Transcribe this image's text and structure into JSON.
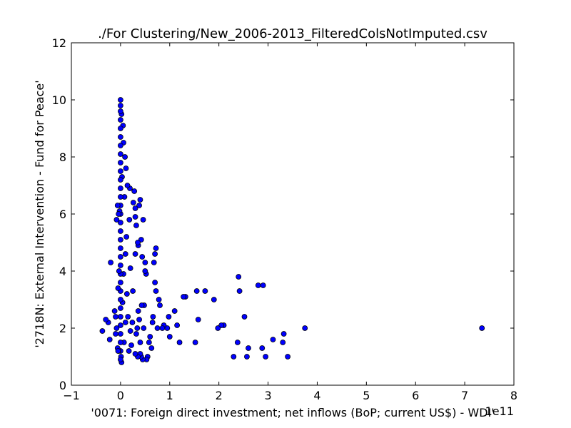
{
  "chart_data": {
    "type": "scatter",
    "title": "./For Clustering/New_2006-2013_FilteredColsNotImputed.csv",
    "xlabel": "'0071: Foreign direct investment; net inflows  (BoP; current US$) - WDI'",
    "ylabel": "'2718N: External Intervention - Fund for Peace'",
    "x_offset_label": "1e11",
    "xlim": [
      -1,
      8
    ],
    "ylim": [
      0,
      12
    ],
    "x_ticks": [
      "−1",
      "0",
      "1",
      "2",
      "3",
      "4",
      "5",
      "6",
      "7",
      "8"
    ],
    "y_ticks": [
      "0",
      "2",
      "4",
      "6",
      "8",
      "10",
      "12"
    ],
    "grid": false,
    "marker_color": "#0000ff",
    "marker_edge_color": "#000000",
    "points": [
      [
        7.35,
        2.0
      ],
      [
        3.75,
        2.0
      ],
      [
        3.4,
        1.0
      ],
      [
        3.32,
        1.8
      ],
      [
        3.3,
        1.5
      ],
      [
        3.1,
        1.6
      ],
      [
        2.95,
        1.0
      ],
      [
        2.9,
        3.5
      ],
      [
        2.88,
        1.3
      ],
      [
        2.8,
        3.5
      ],
      [
        2.6,
        1.3
      ],
      [
        2.57,
        1.0
      ],
      [
        2.52,
        2.4
      ],
      [
        2.42,
        3.3
      ],
      [
        2.4,
        3.8
      ],
      [
        2.38,
        1.5
      ],
      [
        2.3,
        1.0
      ],
      [
        2.1,
        2.1
      ],
      [
        2.05,
        2.1
      ],
      [
        1.98,
        2.0
      ],
      [
        1.9,
        3.0
      ],
      [
        1.72,
        3.3
      ],
      [
        1.58,
        2.3
      ],
      [
        1.55,
        3.3
      ],
      [
        1.52,
        1.5
      ],
      [
        1.32,
        3.1
      ],
      [
        1.28,
        3.1
      ],
      [
        1.2,
        1.5
      ],
      [
        1.15,
        2.1
      ],
      [
        1.1,
        2.6
      ],
      [
        1.0,
        1.7
      ],
      [
        0.98,
        2.4
      ],
      [
        0.95,
        2.0
      ],
      [
        0.88,
        2.1
      ],
      [
        0.85,
        2.0
      ],
      [
        0.8,
        2.8
      ],
      [
        0.78,
        3.0
      ],
      [
        0.75,
        2.0
      ],
      [
        0.72,
        3.3
      ],
      [
        0.7,
        4.6
      ],
      [
        0.72,
        4.8
      ],
      [
        0.7,
        3.6
      ],
      [
        0.68,
        4.3
      ],
      [
        0.66,
        2.4
      ],
      [
        0.65,
        2.2
      ],
      [
        0.63,
        1.3
      ],
      [
        0.6,
        1.7
      ],
      [
        0.58,
        1.5
      ],
      [
        0.55,
        1.0
      ],
      [
        0.53,
        0.9
      ],
      [
        0.52,
        3.9
      ],
      [
        0.5,
        4.0
      ],
      [
        0.5,
        4.3
      ],
      [
        0.48,
        2.8
      ],
      [
        0.47,
        2.0
      ],
      [
        0.45,
        0.9
      ],
      [
        0.44,
        4.5
      ],
      [
        0.43,
        2.8
      ],
      [
        0.42,
        1.0
      ],
      [
        0.4,
        1.1
      ],
      [
        0.4,
        1.5
      ],
      [
        0.38,
        2.3
      ],
      [
        0.36,
        2.6
      ],
      [
        0.35,
        1.0
      ],
      [
        0.34,
        2.0
      ],
      [
        0.32,
        1.8
      ],
      [
        0.3,
        1.1
      ],
      [
        0.3,
        4.6
      ],
      [
        0.46,
        5.8
      ],
      [
        0.42,
        5.1
      ],
      [
        0.4,
        6.5
      ],
      [
        0.38,
        6.3
      ],
      [
        0.36,
        4.9
      ],
      [
        0.35,
        5.0
      ],
      [
        0.32,
        5.6
      ],
      [
        0.3,
        6.2
      ],
      [
        0.3,
        5.9
      ],
      [
        0.28,
        6.8
      ],
      [
        0.26,
        6.4
      ],
      [
        0.25,
        3.3
      ],
      [
        0.24,
        2.2
      ],
      [
        0.22,
        1.4
      ],
      [
        0.2,
        1.9
      ],
      [
        0.2,
        4.1
      ],
      [
        0.19,
        6.9
      ],
      [
        0.18,
        5.8
      ],
      [
        0.17,
        1.2
      ],
      [
        0.15,
        2.4
      ],
      [
        0.14,
        7.0
      ],
      [
        0.13,
        3.2
      ],
      [
        0.12,
        5.2
      ],
      [
        0.11,
        7.6
      ],
      [
        0.1,
        2.2
      ],
      [
        0.1,
        4.6
      ],
      [
        0.09,
        8.0
      ],
      [
        0.08,
        6.6
      ],
      [
        0.07,
        1.5
      ],
      [
        0.06,
        3.9
      ],
      [
        0.06,
        8.5
      ],
      [
        0.05,
        9.1
      ],
      [
        0.04,
        2.9
      ],
      [
        0.03,
        7.3
      ],
      [
        0.02,
        9.5
      ],
      [
        0.02,
        0.8
      ],
      [
        0.01,
        1.0
      ],
      [
        0.0,
        10.0
      ],
      [
        0.0,
        9.8
      ],
      [
        0.0,
        9.6
      ],
      [
        0.0,
        9.3
      ],
      [
        0.0,
        9.0
      ],
      [
        0.0,
        8.7
      ],
      [
        0.0,
        8.4
      ],
      [
        0.0,
        8.1
      ],
      [
        0.0,
        7.8
      ],
      [
        0.0,
        7.5
      ],
      [
        0.0,
        7.2
      ],
      [
        0.0,
        6.9
      ],
      [
        0.0,
        6.6
      ],
      [
        0.0,
        6.3
      ],
      [
        0.0,
        6.0
      ],
      [
        0.0,
        5.7
      ],
      [
        0.0,
        5.4
      ],
      [
        0.0,
        5.1
      ],
      [
        0.0,
        4.8
      ],
      [
        0.0,
        4.5
      ],
      [
        0.0,
        4.2
      ],
      [
        0.0,
        3.9
      ],
      [
        0.0,
        3.6
      ],
      [
        0.0,
        3.3
      ],
      [
        0.0,
        3.0
      ],
      [
        0.0,
        2.7
      ],
      [
        0.0,
        2.4
      ],
      [
        0.0,
        2.1
      ],
      [
        0.0,
        1.8
      ],
      [
        0.0,
        1.5
      ],
      [
        0.0,
        1.2
      ],
      [
        0.0,
        0.9
      ],
      [
        -0.02,
        6.1
      ],
      [
        -0.03,
        4.0
      ],
      [
        -0.04,
        1.2
      ],
      [
        -0.05,
        3.4
      ],
      [
        -0.06,
        1.3
      ],
      [
        -0.08,
        2.0
      ],
      [
        -0.1,
        2.4
      ],
      [
        -0.12,
        2.6
      ],
      [
        -0.2,
        4.3
      ],
      [
        -0.22,
        1.6
      ],
      [
        -0.25,
        2.2
      ],
      [
        -0.3,
        2.3
      ],
      [
        -0.37,
        1.9
      ],
      [
        -0.08,
        5.8
      ],
      [
        -0.06,
        6.3
      ],
      [
        -0.04,
        6.0
      ],
      [
        -0.1,
        1.8
      ],
      [
        -0.05,
        1.2
      ]
    ]
  }
}
